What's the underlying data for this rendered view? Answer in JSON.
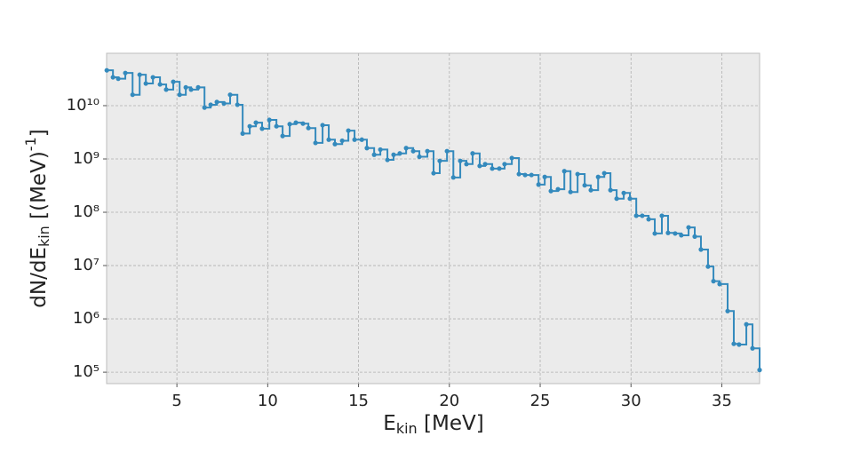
{
  "chart_data": {
    "type": "step",
    "xlabel": {
      "base": "E",
      "sub": "kin",
      "rest": " [MeV]"
    },
    "ylabel": {
      "base": "dN/dE",
      "sub": "kin",
      "mid": " [(MeV)",
      "sup": "-1",
      "end": "]"
    },
    "xlim": [
      1.13,
      37.08
    ],
    "ylim": [
      61000,
      96000000000
    ],
    "log_y": true,
    "grid": true,
    "xticks": [
      5,
      10,
      15,
      20,
      25,
      30,
      35
    ],
    "yticks": [
      {
        "value": 100000,
        "label": "10⁵"
      },
      {
        "value": 1000000,
        "label": "10⁶"
      },
      {
        "value": 10000000,
        "label": "10⁷"
      },
      {
        "value": 100000000,
        "label": "10⁸"
      },
      {
        "value": 1000000000,
        "label": "10⁹"
      },
      {
        "value": 10000000000,
        "label": "10¹⁰"
      }
    ],
    "series": [
      {
        "color": "#348abd",
        "x": [
          1.14,
          1.48,
          1.77,
          2.16,
          2.56,
          2.95,
          3.29,
          3.68,
          4.07,
          4.41,
          4.8,
          5.15,
          5.49,
          5.78,
          6.17,
          6.52,
          6.86,
          7.2,
          7.59,
          7.93,
          8.33,
          8.62,
          9.01,
          9.35,
          9.69,
          10.09,
          10.48,
          10.82,
          11.21,
          11.55,
          11.94,
          12.24,
          12.63,
          13.02,
          13.36,
          13.7,
          14.1,
          14.44,
          14.78,
          15.18,
          15.46,
          15.86,
          16.2,
          16.59,
          16.93,
          17.27,
          17.62,
          18.01,
          18.35,
          18.79,
          19.13,
          19.47,
          19.87,
          20.22,
          20.6,
          20.94,
          21.28,
          21.67,
          21.97,
          22.36,
          22.75,
          23.04,
          23.44,
          23.83,
          24.17,
          24.52,
          24.91,
          25.25,
          25.59,
          25.98,
          26.33,
          26.67,
          27.06,
          27.45,
          27.79,
          28.19,
          28.53,
          28.87,
          29.21,
          29.6,
          29.94,
          30.29,
          30.62,
          30.97,
          31.31,
          31.7,
          32.04,
          32.43,
          32.77,
          33.17,
          33.51,
          33.85,
          34.24,
          34.54,
          34.88,
          35.32,
          35.66,
          35.95,
          36.35,
          36.69,
          37.08
        ],
        "values": [
          46000000000,
          34000000000,
          32000000000,
          41000000000,
          16000000000,
          38000000000,
          26000000000,
          34000000000,
          25000000000,
          20000000000,
          28000000000,
          16000000000,
          22000000000,
          20000000000,
          22000000000,
          9200000000,
          10400000000,
          11700000000,
          11000000000,
          16000000000,
          10400000000,
          3000000000,
          4100000000,
          4800000000,
          3700000000,
          5400000000,
          4100000000,
          2700000000,
          4500000000,
          4800000000,
          4600000000,
          3800000000,
          2000000000,
          4300000000,
          2300000000,
          1900000000,
          2200000000,
          3400000000,
          2300000000,
          2300000000,
          1600000000,
          1200000000,
          1500000000,
          960000000,
          1200000000,
          1270000000,
          1600000000,
          1400000000,
          1100000000,
          1400000000,
          540000000,
          920000000,
          1400000000,
          450000000,
          920000000,
          800000000,
          1270000000,
          740000000,
          800000000,
          660000000,
          660000000,
          800000000,
          1040000000,
          520000000,
          500000000,
          500000000,
          330000000,
          460000000,
          250000000,
          270000000,
          590000000,
          240000000,
          520000000,
          320000000,
          260000000,
          460000000,
          540000000,
          260000000,
          180000000,
          230000000,
          180000000,
          86000000,
          86000000,
          74000000,
          40000000,
          86000000,
          41000000,
          40000000,
          37000000,
          52000000,
          35000000,
          20000000,
          9600000,
          5100000,
          4500000,
          1400000,
          340000,
          330000,
          790000,
          280000,
          110000
        ]
      }
    ]
  }
}
